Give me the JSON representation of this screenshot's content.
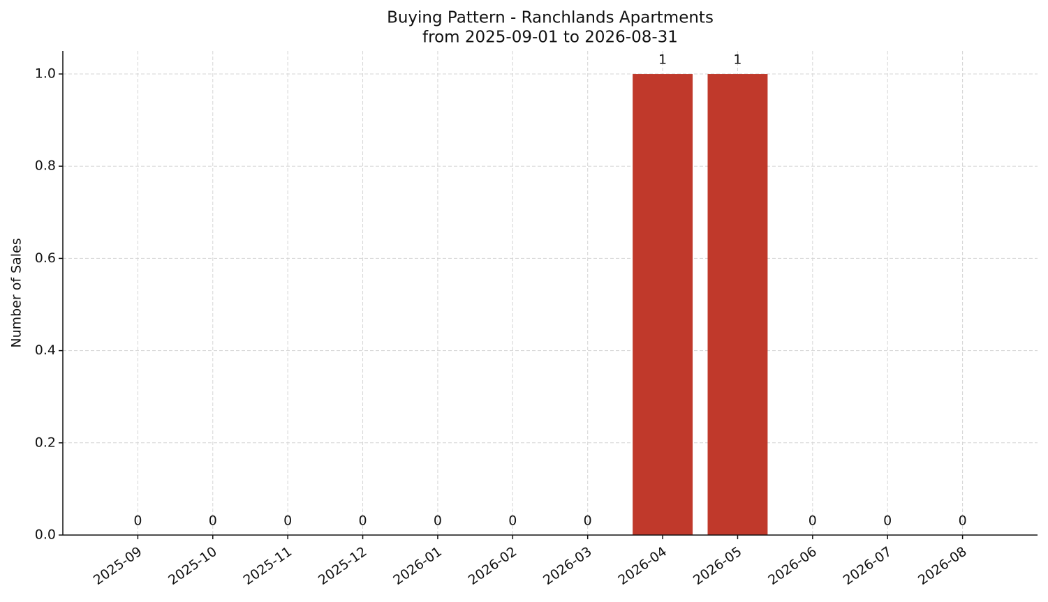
{
  "chart_data": {
    "type": "bar",
    "title": "Buying Pattern - Ranchlands Apartments",
    "subtitle": "from 2025-09-01 to 2026-08-31",
    "y_label": "Number of Sales",
    "categories": [
      "2025-09",
      "2025-10",
      "2025-11",
      "2025-12",
      "2026-01",
      "2026-02",
      "2026-03",
      "2026-04",
      "2026-05",
      "2026-06",
      "2026-07",
      "2026-08"
    ],
    "values": [
      0,
      0,
      0,
      0,
      0,
      0,
      0,
      1,
      1,
      0,
      0,
      0
    ],
    "color": "#c0392b",
    "ylim": [
      0,
      1.05
    ],
    "yticks": [
      {
        "value": 0,
        "label": "0.0"
      },
      {
        "value": 0.2,
        "label": "0.2"
      },
      {
        "value": 0.4,
        "label": "0.4"
      },
      {
        "value": 0.6,
        "label": "0.6"
      },
      {
        "value": 0.8,
        "label": "0.8"
      },
      {
        "value": 1,
        "label": "1.0"
      }
    ],
    "grid": true
  }
}
